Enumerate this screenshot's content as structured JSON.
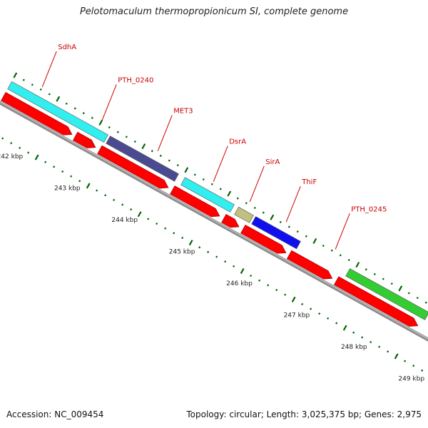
{
  "title": "Pelotomaculum thermopropionicum SI, complete genome",
  "footer": {
    "accession": "Accession: NC_009454",
    "summary": "Topology: circular; Length: 3,025,375 bp; Genes: 2,975"
  },
  "colors": {
    "backbone": "#8c8c8c",
    "cds": "#ff0000",
    "tick": "#006600",
    "gene_label": "#cc0000",
    "cog_cyan": "#33eeee",
    "cog_slate": "#4a4a90",
    "cog_khaki": "#c0c080",
    "cog_blue": "#1010ee",
    "cog_green": "#33cc33"
  },
  "kbp_labels": [
    "242 kbp",
    "243 kbp",
    "244 kbp",
    "245 kbp",
    "246 kbp",
    "247 kbp",
    "248 kbp",
    "249 kbp"
  ],
  "gene_labels": [
    "SdhA",
    "PTH_0240",
    "MET3",
    "DsrA",
    "SirA",
    "ThiF",
    "PTH_0245"
  ],
  "cds_features": [
    {
      "start": 0.0,
      "end": 0.16,
      "strand": "+"
    },
    {
      "start": 0.168,
      "end": 0.215,
      "strand": "+"
    },
    {
      "start": 0.225,
      "end": 0.385,
      "strand": "+"
    },
    {
      "start": 0.395,
      "end": 0.505,
      "strand": "+"
    },
    {
      "start": 0.515,
      "end": 0.55,
      "strand": "+"
    },
    {
      "start": 0.56,
      "end": 0.66,
      "strand": "+"
    },
    {
      "start": 0.668,
      "end": 0.768,
      "strand": "+"
    },
    {
      "start": 0.778,
      "end": 0.968,
      "strand": "+"
    },
    {
      "start": 0.998,
      "end": 1.02,
      "strand": "+"
    }
  ],
  "cog_features": [
    {
      "start": 0.0,
      "end": 0.225,
      "color": "cog_cyan"
    },
    {
      "start": 0.23,
      "end": 0.39,
      "color": "cog_slate"
    },
    {
      "start": 0.405,
      "end": 0.52,
      "color": "cog_cyan"
    },
    {
      "start": 0.53,
      "end": 0.565,
      "color": "cog_khaki"
    },
    {
      "start": 0.57,
      "end": 0.675,
      "color": "cog_blue"
    },
    {
      "start": 0.79,
      "end": 0.975,
      "color": "cog_green"
    }
  ]
}
